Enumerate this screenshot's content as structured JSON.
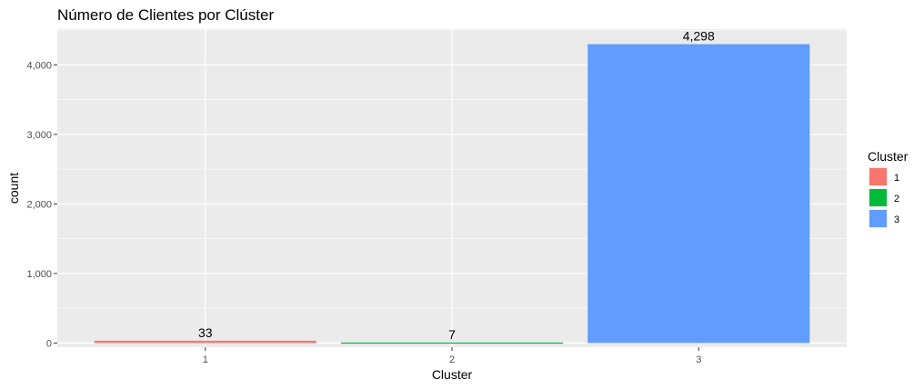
{
  "chart_data": {
    "type": "bar",
    "title": "Número de Clientes por Clúster",
    "xlabel": "Cluster",
    "ylabel": "count",
    "categories": [
      "1",
      "2",
      "3"
    ],
    "values": [
      33,
      7,
      4298
    ],
    "data_labels": [
      "33",
      "7",
      "4,298"
    ],
    "colors": [
      "#F8766D",
      "#00BA38",
      "#619CFF"
    ],
    "ylim": [
      -60,
      4515
    ],
    "y_ticks": [
      0,
      1000,
      2000,
      3000,
      4000
    ],
    "y_tick_labels": [
      "0",
      "1,000",
      "2,000",
      "3,000",
      "4,000"
    ],
    "grid": true,
    "legend": {
      "title": "Cluster",
      "position": "right",
      "items": [
        "1",
        "2",
        "3"
      ]
    }
  }
}
